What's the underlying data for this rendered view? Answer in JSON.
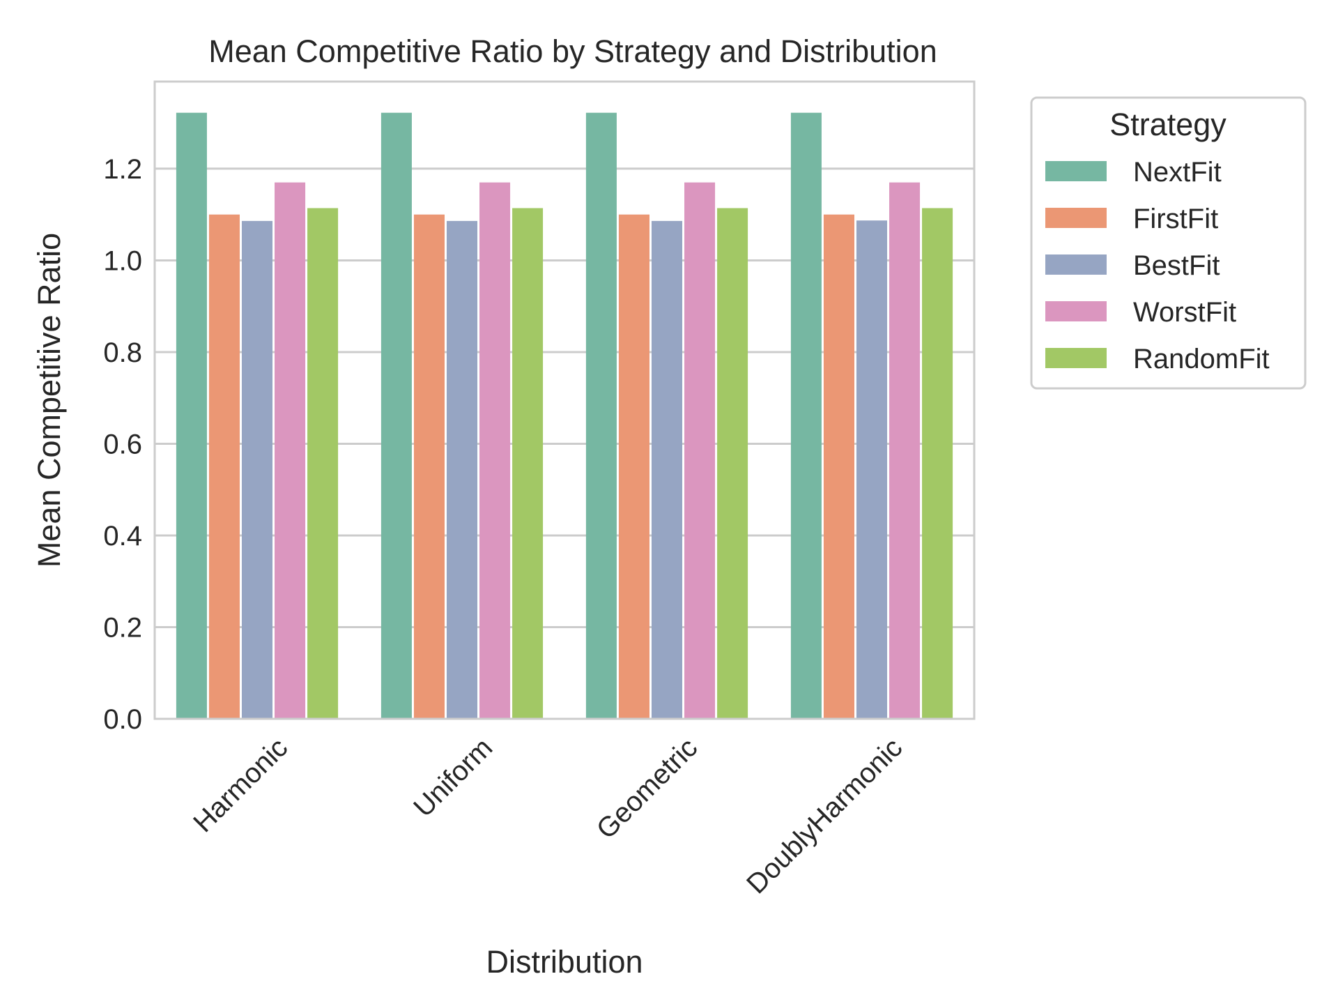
{
  "chart_data": {
    "type": "bar",
    "title": "Mean Competitive Ratio by Strategy and Distribution",
    "xlabel": "Distribution",
    "ylabel": "Mean Competitive Ratio",
    "categories": [
      "Harmonic",
      "Uniform",
      "Geometric",
      "DoublyHarmonic"
    ],
    "series": [
      {
        "name": "NextFit",
        "color": "#76b7a2",
        "values": [
          1.322,
          1.322,
          1.322,
          1.322
        ]
      },
      {
        "name": "FirstFit",
        "color": "#eb9774",
        "values": [
          1.1,
          1.1,
          1.1,
          1.1
        ]
      },
      {
        "name": "BestFit",
        "color": "#96a5c3",
        "values": [
          1.086,
          1.086,
          1.086,
          1.087
        ]
      },
      {
        "name": "WorstFit",
        "color": "#db96bf",
        "values": [
          1.17,
          1.17,
          1.17,
          1.17
        ]
      },
      {
        "name": "RandomFit",
        "color": "#a2c865",
        "values": [
          1.114,
          1.114,
          1.114,
          1.114
        ]
      }
    ],
    "ylim": [
      0,
      1.39
    ],
    "yticks": [
      "0.0",
      "0.2",
      "0.4",
      "0.6",
      "0.8",
      "1.0",
      "1.2"
    ],
    "grid": true,
    "legend": {
      "title": "Strategy",
      "placement": "outside-right"
    }
  }
}
